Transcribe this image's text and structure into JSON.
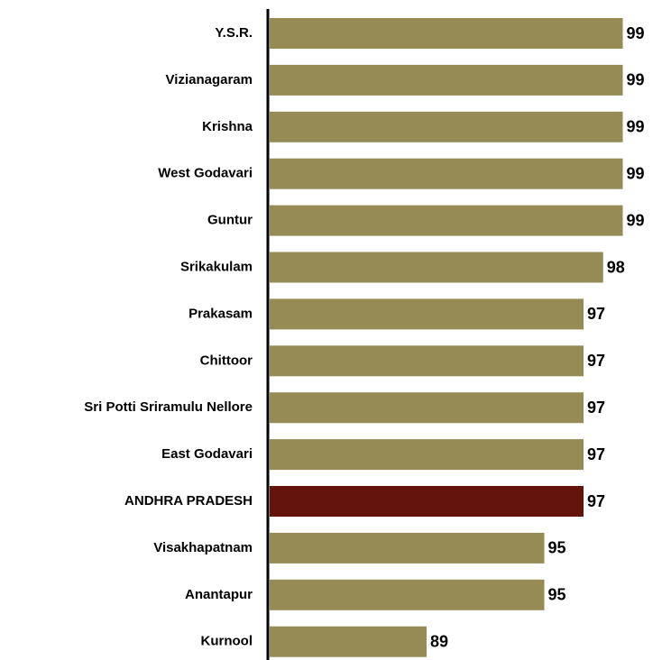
{
  "chart_data": {
    "type": "bar",
    "orientation": "horizontal",
    "categories": [
      "Y.S.R.",
      "Vizianagaram",
      "Krishna",
      "West Godavari",
      "Guntur",
      "Srikakulam",
      "Prakasam",
      "Chittoor",
      "Sri Potti Sriramulu Nellore",
      "East Godavari",
      "ANDHRA PRADESH",
      "Visakhapatnam",
      "Anantapur",
      "Kurnool"
    ],
    "values": [
      99,
      99,
      99,
      99,
      99,
      98,
      97,
      97,
      97,
      97,
      97,
      95,
      95,
      89
    ],
    "colors": [
      "#968a55",
      "#968a55",
      "#968a55",
      "#968a55",
      "#968a55",
      "#968a55",
      "#968a55",
      "#968a55",
      "#968a55",
      "#968a55",
      "#64140a",
      "#968a55",
      "#968a55",
      "#968a55"
    ],
    "xlim": [
      81,
      101
    ]
  }
}
